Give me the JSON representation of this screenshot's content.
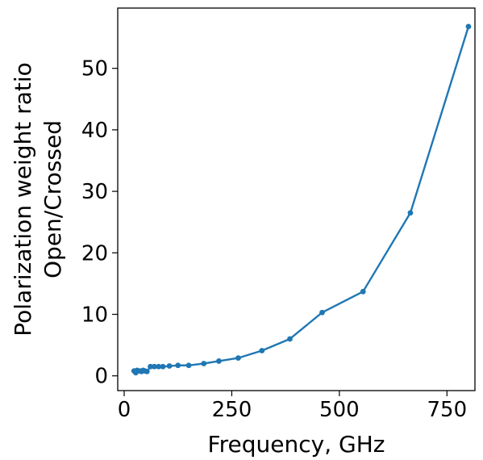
{
  "chart_data": {
    "type": "line",
    "title": "",
    "xlabel": "Frequency, GHz",
    "ylabel_lines": [
      "Polarization weight ratio",
      "Open/Crossed"
    ],
    "xlim": [
      -15,
      815
    ],
    "ylim": [
      -2.4,
      59.8
    ],
    "xticks": [
      0,
      250,
      500,
      750
    ],
    "yticks": [
      0,
      10,
      20,
      30,
      40,
      50
    ],
    "grid": false,
    "legend": "none",
    "series": [
      {
        "color": "#1f77b4",
        "marker": "circle",
        "x": [
          23,
          27,
          30,
          36,
          40,
          44,
          48,
          53,
          61,
          70,
          80,
          90,
          105,
          125,
          150,
          185,
          220,
          265,
          320,
          385,
          460,
          555,
          665,
          800
        ],
        "y": [
          0.8,
          0.5,
          0.9,
          0.8,
          0.7,
          0.9,
          0.8,
          0.7,
          1.5,
          1.5,
          1.5,
          1.5,
          1.6,
          1.7,
          1.7,
          2.0,
          2.4,
          2.9,
          4.1,
          6.0,
          10.3,
          13.7,
          26.5,
          56.8
        ]
      }
    ]
  }
}
